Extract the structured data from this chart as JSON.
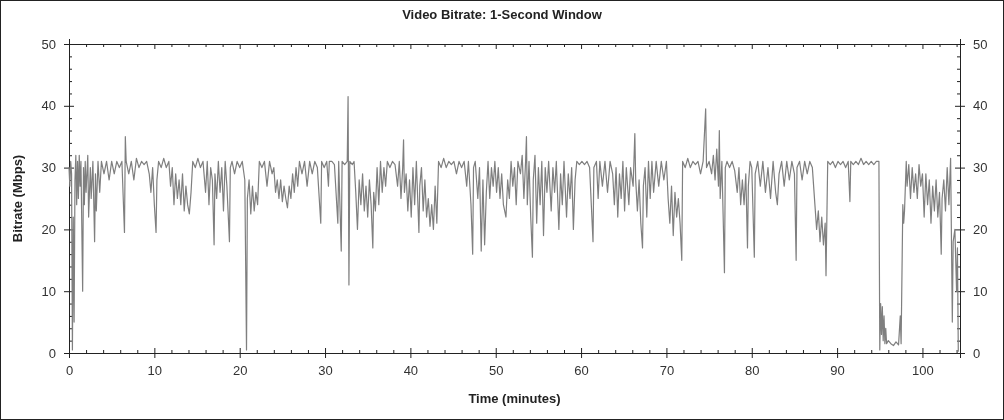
{
  "chart_data": {
    "type": "line",
    "title": "Video Bitrate: 1-Second Window",
    "xlabel": "Time (minutes)",
    "ylabel": "Bitrate (Mbps)",
    "xlim": [
      0,
      104.4
    ],
    "ylim": [
      0,
      50
    ],
    "y2lim": [
      0,
      50
    ],
    "xticks": [
      0,
      {
        "value": 2,
        "label": null
      },
      {
        "value": 4,
        "label": null
      },
      {
        "value": 6,
        "label": null
      },
      {
        "value": 8,
        "label": null
      },
      10,
      {
        "value": 12,
        "label": null
      },
      {
        "value": 14,
        "label": null
      },
      {
        "value": 16,
        "label": null
      },
      {
        "value": 18,
        "label": null
      },
      20,
      {
        "value": 22,
        "label": null
      },
      {
        "value": 24,
        "label": null
      },
      {
        "value": 26,
        "label": null
      },
      {
        "value": 28,
        "label": null
      },
      30,
      {
        "value": 32,
        "label": null
      },
      {
        "value": 34,
        "label": null
      },
      {
        "value": 36,
        "label": null
      },
      {
        "value": 38,
        "label": null
      },
      40,
      {
        "value": 42,
        "label": null
      },
      {
        "value": 44,
        "label": null
      },
      {
        "value": 46,
        "label": null
      },
      {
        "value": 48,
        "label": null
      },
      50,
      {
        "value": 52,
        "label": null
      },
      {
        "value": 54,
        "label": null
      },
      {
        "value": 56,
        "label": null
      },
      {
        "value": 58,
        "label": null
      },
      60,
      {
        "value": 62,
        "label": null
      },
      {
        "value": 64,
        "label": null
      },
      {
        "value": 66,
        "label": null
      },
      {
        "value": 68,
        "label": null
      },
      70,
      {
        "value": 72,
        "label": null
      },
      {
        "value": 74,
        "label": null
      },
      {
        "value": 76,
        "label": null
      },
      {
        "value": 78,
        "label": null
      },
      80,
      {
        "value": 82,
        "label": null
      },
      {
        "value": 84,
        "label": null
      },
      {
        "value": 86,
        "label": null
      },
      {
        "value": 88,
        "label": null
      },
      90,
      {
        "value": 92,
        "label": null
      },
      {
        "value": 94,
        "label": null
      },
      {
        "value": 96,
        "label": null
      },
      {
        "value": 98,
        "label": null
      },
      100,
      {
        "value": 102,
        "label": null
      },
      {
        "value": 104,
        "label": null
      }
    ],
    "yticks": [
      0,
      {
        "value": 2,
        "label": null
      },
      {
        "value": 4,
        "label": null
      },
      {
        "value": 6,
        "label": null
      },
      {
        "value": 8,
        "label": null
      },
      10,
      {
        "value": 12,
        "label": null
      },
      {
        "value": 14,
        "label": null
      },
      {
        "value": 16,
        "label": null
      },
      {
        "value": 18,
        "label": null
      },
      20,
      {
        "value": 22,
        "label": null
      },
      {
        "value": 24,
        "label": null
      },
      {
        "value": 26,
        "label": null
      },
      {
        "value": 28,
        "label": null
      },
      30,
      {
        "value": 32,
        "label": null
      },
      {
        "value": 34,
        "label": null
      },
      {
        "value": 36,
        "label": null
      },
      {
        "value": 38,
        "label": null
      },
      40,
      {
        "value": 42,
        "label": null
      },
      {
        "value": 44,
        "label": null
      },
      {
        "value": 46,
        "label": null
      },
      {
        "value": 48,
        "label": null
      },
      50
    ],
    "y2ticks": [
      0,
      {
        "value": 2,
        "label": null
      },
      {
        "value": 4,
        "label": null
      },
      {
        "value": 6,
        "label": null
      },
      {
        "value": 8,
        "label": null
      },
      10,
      {
        "value": 12,
        "label": null
      },
      {
        "value": 14,
        "label": null
      },
      {
        "value": 16,
        "label": null
      },
      {
        "value": 18,
        "label": null
      },
      20,
      {
        "value": 22,
        "label": null
      },
      {
        "value": 24,
        "label": null
      },
      {
        "value": 26,
        "label": null
      },
      {
        "value": 28,
        "label": null
      },
      30,
      {
        "value": 32,
        "label": null
      },
      {
        "value": 34,
        "label": null
      },
      {
        "value": 36,
        "label": null
      },
      {
        "value": 38,
        "label": null
      },
      40,
      {
        "value": 42,
        "label": null
      },
      {
        "value": 44,
        "label": null
      },
      {
        "value": 46,
        "label": null
      },
      {
        "value": 48,
        "label": null
      },
      50
    ],
    "x": [
      0,
      0.1,
      0.2,
      0.3,
      0.4,
      0.5,
      0.6,
      0.7,
      0.8,
      0.9,
      1,
      1.1,
      1.2,
      1.3,
      1.4,
      1.6,
      1.7,
      1.8,
      1.9,
      2,
      2.2,
      2.3,
      2.5,
      2.6,
      2.8,
      3,
      3.1,
      3.2,
      3.4,
      3.6,
      3.8,
      4.1,
      4.4,
      4.7,
      5,
      5.3,
      5.6,
      5.9,
      6.2,
      6.5,
      6.6,
      6.7,
      7,
      7.3,
      7.6,
      7.9,
      8.2,
      8.5,
      8.8,
      9.1,
      9.4,
      9.6,
      9.8,
      10,
      10.2,
      10.3,
      10.5,
      10.8,
      11.1,
      11.4,
      11.7,
      11.9,
      12.1,
      12.3,
      12.5,
      12.7,
      12.9,
      13.1,
      13.3,
      13.5,
      13.7,
      13.9,
      14.1,
      14.3,
      14.5,
      14.8,
      15.1,
      15.4,
      15.7,
      16,
      16.2,
      16.4,
      16.6,
      16.8,
      17,
      17.1,
      17.3,
      17.5,
      17.7,
      17.9,
      18.1,
      18.3,
      18.5,
      18.8,
      18.9,
      19.1,
      19.4,
      19.7,
      20,
      20.3,
      20.6,
      20.8,
      20.9,
      21.1,
      21.3,
      21.5,
      21.7,
      21.9,
      22.1,
      22.3,
      22.6,
      22.9,
      23.2,
      23.5,
      23.8,
      24,
      24.2,
      24.4,
      24.6,
      24.8,
      25,
      25.2,
      25.4,
      25.6,
      25.8,
      26,
      26.2,
      26.4,
      26.6,
      26.8,
      27,
      27.3,
      27.6,
      27.9,
      28.2,
      28.5,
      28.8,
      29.1,
      29.5,
      29.6,
      29.9,
      30.2,
      30.4,
      30.5,
      30.8,
      31.1,
      31.5,
      31.6,
      31.9,
      32,
      32.3,
      32.6,
      32.7,
      32.8,
      32.9,
      33.2,
      33.4,
      33.6,
      33.8,
      34,
      34.2,
      34.4,
      34.6,
      34.8,
      35,
      35.2,
      35.4,
      35.6,
      35.7,
      35.9,
      36.1,
      36.3,
      36.5,
      36.7,
      36.9,
      37.1,
      37.3,
      37.6,
      37.9,
      38.2,
      38.5,
      38.7,
      38.9,
      39.1,
      39.2,
      39.3,
      39.5,
      39.7,
      39.9,
      40.1,
      40.3,
      40.5,
      40.7,
      41,
      41.1,
      41.3,
      41.5,
      41.7,
      41.9,
      42.1,
      42.3,
      42.5,
      42.7,
      42.9,
      43.1,
      43.3,
      43.6,
      43.9,
      44.2,
      44.5,
      44.8,
      45.1,
      45.4,
      45.7,
      46,
      46.3,
      46.6,
      46.8,
      47.1,
      47.3,
      47.4,
      47.6,
      47.9,
      48.1,
      48.3,
      48.5,
      48.7,
      48.9,
      49.1,
      49.3,
      49.5,
      49.7,
      49.9,
      50.1,
      50.3,
      50.5,
      50.7,
      50.9,
      51.2,
      51.4,
      51.6,
      51.8,
      52,
      52.2,
      52.4,
      52.6,
      52.9,
      53.1,
      53.3,
      53.5,
      53.6,
      53.7,
      53.9,
      54.1,
      54.3,
      54.4,
      54.6,
      54.8,
      55,
      55.2,
      55.4,
      55.6,
      55.8,
      56,
      56.2,
      56.5,
      56.7,
      56.9,
      57.1,
      57.4,
      57.6,
      57.8,
      58,
      58.3,
      58.5,
      58.7,
      58.9,
      59.1,
      59.3,
      59.5,
      59.8,
      60.1,
      60.4,
      60.7,
      61,
      61.4,
      61.5,
      61.8,
      62,
      62.2,
      62.5,
      62.8,
      63.1,
      63.4,
      63.7,
      63.9,
      64.1,
      64.3,
      64.5,
      64.7,
      64.9,
      65.1,
      65.3,
      65.6,
      65.8,
      66.1,
      66.3,
      66.4,
      66.6,
      66.8,
      67,
      67.2,
      67.3,
      67.5,
      67.7,
      67.9,
      68.1,
      68.3,
      68.5,
      68.8,
      69.1,
      69.4,
      69.7,
      70,
      70.2,
      70.4,
      70.6,
      70.8,
      71,
      71.2,
      71.4,
      71.6,
      71.8,
      71.9,
      72.2,
      72.5,
      72.8,
      73.1,
      73.4,
      73.7,
      74,
      74.3,
      74.6,
      74.7,
      75,
      75.3,
      75.5,
      75.7,
      75.9,
      76.1,
      76.2,
      76.3,
      76.5,
      76.8,
      76.9,
      77.1,
      77.4,
      77.7,
      78,
      78.3,
      78.5,
      78.7,
      78.9,
      79.1,
      79.3,
      79.5,
      79.6,
      79.8,
      80,
      80.3,
      80.4,
      80.7,
      81,
      81.3,
      81.6,
      81.9,
      82.2,
      82.5,
      82.8,
      83,
      83.2,
      83.5,
      83.8,
      84.1,
      84.4,
      84.7,
      85,
      85.2,
      85.3,
      85.6,
      85.9,
      86.2,
      86.5,
      86.8,
      87.1,
      87.4,
      87.6,
      87.8,
      88,
      88.2,
      88.4,
      88.6,
      88.7,
      88.9,
      89.2,
      89.5,
      89.8,
      90.1,
      90.4,
      90.7,
      91,
      91.3,
      91.5,
      91.6,
      91.9,
      92.2,
      92.5,
      92.8,
      93.1,
      93.4,
      93.7,
      94,
      94.3,
      94.6,
      94.9,
      95,
      95.1,
      95.2,
      95.3,
      95.4,
      95.5,
      95.6,
      95.7,
      95.8,
      96,
      96.3,
      96.6,
      96.9,
      97.2,
      97.4,
      97.5,
      97.7,
      97.8,
      97.9,
      98.1,
      98.2,
      98.4,
      98.6,
      98.8,
      99,
      99.2,
      99.4,
      99.6,
      99.8,
      100,
      100.2,
      100.4,
      100.6,
      100.8,
      101,
      101.2,
      101.4,
      101.6,
      101.8,
      102,
      102.2,
      102.3,
      102.5,
      102.7,
      102.9,
      103.1,
      103.3,
      103.5,
      103.6,
      103.8,
      104,
      104.1,
      104.2
    ],
    "series": [
      {
        "color": "#7f7f7f",
        "values": [
          30,
          27,
          31,
          29,
          0.5,
          22,
          5,
          28,
          32,
          24,
          31,
          25,
          32,
          27,
          31,
          10,
          30,
          24,
          31,
          26,
          32,
          22,
          30,
          25,
          31,
          18,
          29,
          23,
          31,
          26,
          31,
          29,
          31,
          28,
          31,
          29,
          31,
          30,
          31,
          19.5,
          35,
          31,
          29,
          31,
          28,
          31.5,
          30,
          31,
          30.5,
          31,
          29,
          26,
          30,
          24,
          19.5,
          28,
          31,
          30,
          31.5,
          30,
          31,
          27,
          30,
          24,
          29,
          25,
          28,
          24,
          29,
          23,
          27,
          24,
          22.5,
          26,
          31,
          30,
          31.5,
          30,
          31,
          26,
          31,
          24,
          30,
          28,
          17.5,
          29,
          25,
          31,
          26,
          30,
          23,
          31,
          27,
          18,
          30,
          31,
          29,
          31,
          30,
          31,
          28,
          0.5,
          25,
          28,
          22.5,
          27,
          23,
          26,
          24,
          31,
          30,
          31,
          27,
          31,
          29,
          30,
          26,
          28,
          25,
          28,
          24.5,
          27,
          25,
          23.5,
          27,
          25,
          29,
          26,
          30,
          27,
          31,
          29,
          31,
          27,
          31,
          29,
          31,
          30,
          21,
          31,
          30,
          31,
          27,
          31,
          31,
          30.5,
          21,
          31,
          16.5,
          31,
          30.5,
          31,
          41.5,
          11,
          31,
          30.5,
          31,
          26,
          20,
          28,
          24,
          29,
          23,
          27,
          22,
          28,
          24,
          17,
          26,
          23,
          30,
          24,
          31,
          26,
          30,
          27,
          31,
          30,
          31,
          30.5,
          27,
          31,
          25,
          30,
          34.5,
          26,
          29,
          23,
          28,
          22,
          30,
          24,
          31,
          19.5,
          27,
          30,
          23,
          28,
          22,
          25,
          20.5,
          24,
          20,
          27,
          21,
          31,
          30,
          31.5,
          30,
          31,
          30.5,
          31,
          29,
          31,
          30,
          31,
          27,
          31,
          24,
          16,
          30,
          31,
          25,
          30,
          16.5,
          28,
          17.5,
          26,
          31,
          25,
          30,
          27,
          31,
          26,
          30,
          25,
          29,
          24,
          22,
          28,
          25,
          31,
          27,
          30,
          24,
          31,
          29,
          32,
          25,
          31,
          35,
          24,
          31,
          22,
          15.5,
          28,
          32,
          21,
          30,
          24,
          31,
          19,
          30,
          26,
          31,
          23,
          30,
          26,
          31,
          20,
          29,
          24,
          31,
          22,
          29,
          25,
          30,
          20,
          28,
          31,
          30.5,
          31,
          30.5,
          31,
          30,
          18,
          30,
          31,
          25,
          31,
          27,
          31,
          26,
          31,
          29,
          24,
          30,
          22,
          29,
          25,
          31,
          23,
          30,
          24,
          30,
          27,
          35.5,
          28,
          23,
          28,
          21,
          17,
          27,
          30,
          22,
          31,
          25,
          31,
          26,
          31,
          27,
          31,
          28,
          31,
          25,
          21,
          27,
          19,
          26,
          22,
          25,
          21,
          15,
          31,
          30,
          31.5,
          30,
          31,
          30.5,
          31,
          29,
          31,
          39.5,
          30,
          31,
          29,
          32,
          28,
          33,
          27,
          36,
          25,
          31,
          13,
          30,
          31,
          30,
          31,
          29.5,
          26,
          30,
          24,
          28,
          24,
          29,
          17,
          27,
          31,
          30,
          15.5,
          29,
          31,
          27,
          31,
          26,
          30,
          25,
          31,
          26,
          24,
          29,
          31,
          27,
          31,
          28,
          31,
          29,
          15,
          30,
          31,
          28,
          31,
          29,
          31,
          30,
          24,
          20,
          23,
          18,
          22,
          17.5,
          21,
          12.5,
          31,
          30.5,
          31,
          30,
          31,
          30.5,
          31,
          30,
          31,
          24.5,
          31,
          30.5,
          31,
          30.5,
          31.5,
          30.5,
          31,
          30.5,
          31,
          30.5,
          31,
          31,
          0.5,
          8,
          3,
          7.5,
          2,
          6,
          1.5,
          4,
          1.5,
          2,
          1.5,
          1.2,
          1.8,
          1.3,
          6,
          1.5,
          24,
          21,
          23,
          31,
          27,
          30.5,
          25,
          30,
          26,
          29,
          25,
          30.5,
          27,
          29,
          22,
          29,
          24,
          28,
          21,
          27,
          23,
          28,
          22,
          26,
          16,
          25,
          28,
          23,
          30,
          24,
          31.5,
          5,
          18,
          20,
          10,
          17,
          0.3
        ]
      }
    ]
  }
}
